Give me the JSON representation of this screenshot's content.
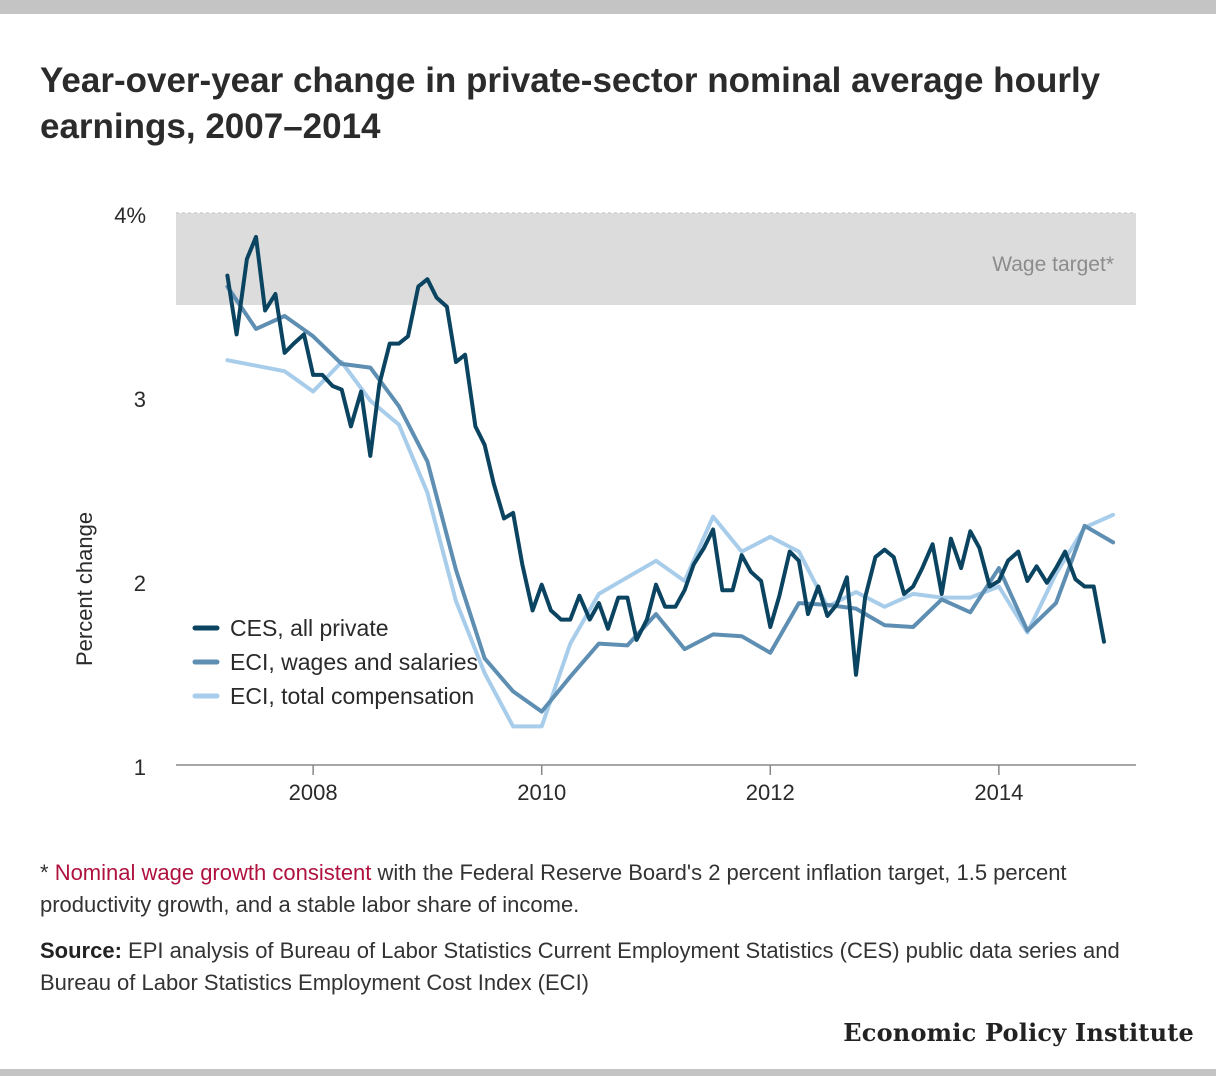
{
  "title": "Year-over-year change in private-sector nominal average hourly earnings, 2007–2014",
  "note": {
    "prefix": "* ",
    "link_text": "Nominal wage growth consistent",
    "rest": " with the Federal Reserve Board's 2 percent inflation target, 1.5 percent productivity growth, and a stable labor share of income."
  },
  "source": {
    "label": "Source:",
    "text": " EPI analysis of Bureau of Labor Statistics Current Employment Statistics (CES) public data series and Bureau of Labor Statistics Employment Cost Index (ECI)"
  },
  "brand": "Economic Policy Institute",
  "colors": {
    "ces": "#0b4461",
    "eci_wages": "#5e8fb3",
    "eci_comp": "#a8cdeb",
    "band": "#dcdcdc",
    "link": "#b0123f"
  },
  "chart_data": {
    "type": "line",
    "title": "Year-over-year change in private-sector nominal average hourly earnings, 2007–2014",
    "xlabel": "",
    "ylabel": "Percent change",
    "xlim": [
      2006.8,
      2015.2
    ],
    "ylim": [
      1,
      4
    ],
    "y_ticks": [
      {
        "v": 1,
        "label": "1"
      },
      {
        "v": 2,
        "label": "2"
      },
      {
        "v": 3,
        "label": "3"
      },
      {
        "v": 4,
        "label": "4%"
      }
    ],
    "x_ticks": [
      {
        "v": 2008,
        "label": "2008"
      },
      {
        "v": 2010,
        "label": "2010"
      },
      {
        "v": 2012,
        "label": "2012"
      },
      {
        "v": 2014,
        "label": "2014"
      }
    ],
    "grid": false,
    "legend_position": "bottom-left",
    "band": {
      "label": "Wage target*",
      "from": 3.5,
      "to": 4.0
    },
    "series": [
      {
        "name": "CES, all private",
        "key": "ces",
        "x": [
          2007.25,
          2007.33,
          2007.42,
          2007.5,
          2007.58,
          2007.67,
          2007.75,
          2007.83,
          2007.92,
          2008.0,
          2008.08,
          2008.17,
          2008.25,
          2008.33,
          2008.42,
          2008.5,
          2008.58,
          2008.67,
          2008.75,
          2008.83,
          2008.92,
          2009.0,
          2009.08,
          2009.17,
          2009.25,
          2009.33,
          2009.42,
          2009.5,
          2009.58,
          2009.67,
          2009.75,
          2009.83,
          2009.92,
          2010.0,
          2010.08,
          2010.17,
          2010.25,
          2010.33,
          2010.42,
          2010.5,
          2010.58,
          2010.67,
          2010.75,
          2010.83,
          2010.92,
          2011.0,
          2011.08,
          2011.17,
          2011.25,
          2011.33,
          2011.42,
          2011.5,
          2011.58,
          2011.67,
          2011.75,
          2011.83,
          2011.92,
          2012.0,
          2012.08,
          2012.17,
          2012.25,
          2012.33,
          2012.42,
          2012.5,
          2012.58,
          2012.67,
          2012.75,
          2012.83,
          2012.92,
          2013.0,
          2013.08,
          2013.17,
          2013.25,
          2013.33,
          2013.42,
          2013.5,
          2013.58,
          2013.67,
          2013.75,
          2013.83,
          2013.92,
          2014.0,
          2014.08,
          2014.17,
          2014.25,
          2014.33,
          2014.42,
          2014.5,
          2014.58,
          2014.67,
          2014.75,
          2014.83,
          2014.92
        ],
        "values": [
          3.66,
          3.34,
          3.75,
          3.87,
          3.47,
          3.56,
          3.24,
          3.29,
          3.34,
          3.12,
          3.12,
          3.06,
          3.04,
          2.84,
          3.03,
          2.68,
          3.07,
          3.29,
          3.29,
          3.33,
          3.6,
          3.64,
          3.54,
          3.49,
          3.19,
          3.23,
          2.84,
          2.74,
          2.53,
          2.34,
          2.37,
          2.09,
          1.84,
          1.98,
          1.84,
          1.79,
          1.79,
          1.92,
          1.79,
          1.88,
          1.74,
          1.91,
          1.91,
          1.68,
          1.79,
          1.98,
          1.86,
          1.86,
          1.95,
          2.09,
          2.18,
          2.28,
          1.95,
          1.95,
          2.14,
          2.05,
          2.0,
          1.75,
          1.92,
          2.16,
          2.11,
          1.82,
          1.97,
          1.81,
          1.87,
          2.02,
          1.49,
          1.91,
          2.13,
          2.17,
          2.13,
          1.93,
          1.97,
          2.07,
          2.2,
          1.93,
          2.23,
          2.07,
          2.27,
          2.18,
          1.97,
          2.0,
          2.11,
          2.16,
          2.0,
          2.08,
          1.99,
          2.07,
          2.16,
          2.01,
          1.97,
          1.97,
          1.67
        ]
      },
      {
        "name": "ECI, wages and salaries",
        "key": "eci_wages",
        "x": [
          2007.25,
          2007.5,
          2007.75,
          2008.0,
          2008.25,
          2008.5,
          2008.75,
          2009.0,
          2009.25,
          2009.5,
          2009.75,
          2010.0,
          2010.25,
          2010.5,
          2010.75,
          2011.0,
          2011.25,
          2011.5,
          2011.75,
          2012.0,
          2012.25,
          2012.5,
          2012.75,
          2013.0,
          2013.25,
          2013.5,
          2013.75,
          2014.0,
          2014.25,
          2014.5,
          2014.75,
          2015.0
        ],
        "values": [
          3.6,
          3.37,
          3.44,
          3.33,
          3.18,
          3.16,
          2.95,
          2.65,
          2.06,
          1.58,
          1.4,
          1.29,
          1.48,
          1.66,
          1.65,
          1.82,
          1.63,
          1.71,
          1.7,
          1.61,
          1.88,
          1.87,
          1.85,
          1.76,
          1.75,
          1.9,
          1.83,
          2.07,
          1.73,
          1.88,
          2.3,
          2.21
        ]
      },
      {
        "name": "ECI, total compensation",
        "key": "eci_comp",
        "x": [
          2007.25,
          2007.5,
          2007.75,
          2008.0,
          2008.25,
          2008.5,
          2008.75,
          2009.0,
          2009.25,
          2009.5,
          2009.75,
          2010.0,
          2010.25,
          2010.5,
          2010.75,
          2011.0,
          2011.25,
          2011.5,
          2011.75,
          2012.0,
          2012.25,
          2012.5,
          2012.75,
          2013.0,
          2013.25,
          2013.5,
          2013.75,
          2014.0,
          2014.25,
          2014.5,
          2014.75,
          2015.0
        ],
        "values": [
          3.2,
          3.17,
          3.14,
          3.03,
          3.19,
          2.98,
          2.85,
          2.48,
          1.89,
          1.5,
          1.21,
          1.21,
          1.66,
          1.93,
          2.02,
          2.11,
          2.0,
          2.35,
          2.16,
          2.24,
          2.16,
          1.86,
          1.94,
          1.86,
          1.93,
          1.91,
          1.91,
          1.97,
          1.72,
          2.04,
          2.29,
          2.36
        ]
      }
    ]
  }
}
